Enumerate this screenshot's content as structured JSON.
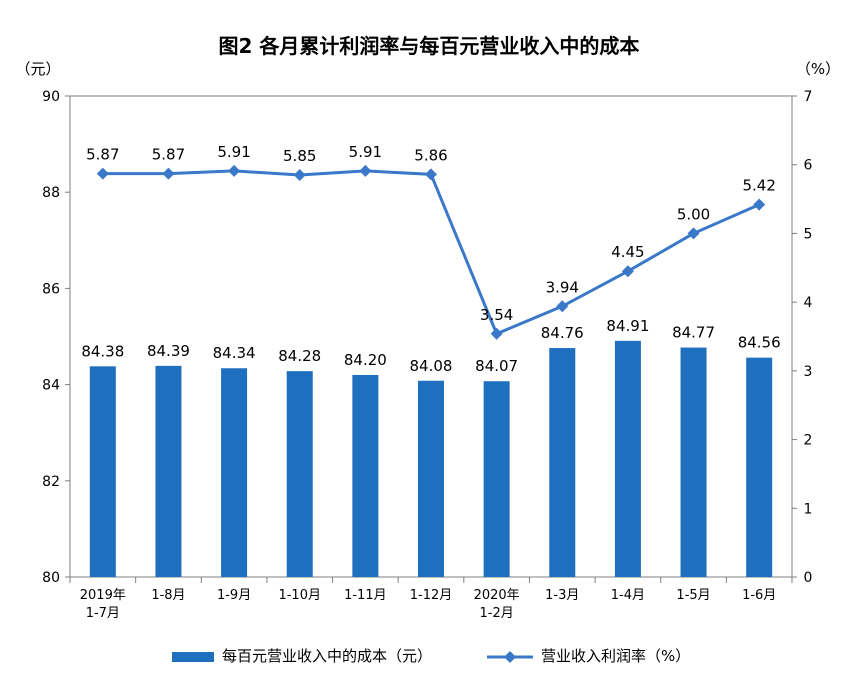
{
  "chart_data": {
    "type": "bar+line",
    "title": "图2 各月累计利润率与每百元营业收入中的成本",
    "left_axis_unit": "（元）",
    "right_axis_unit": "（%）",
    "categories": [
      [
        "2019年",
        "1-7月"
      ],
      [
        "1-8月"
      ],
      [
        "1-9月"
      ],
      [
        "1-10月"
      ],
      [
        "1-11月"
      ],
      [
        "1-12月"
      ],
      [
        "2020年",
        "1-2月"
      ],
      [
        "1-3月"
      ],
      [
        "1-4月"
      ],
      [
        "1-5月"
      ],
      [
        "1-6月"
      ]
    ],
    "series": [
      {
        "name": "每百元营业收入中的成本（元）",
        "type": "bar",
        "axis": "left",
        "color": "#1f6fbf",
        "values": [
          84.38,
          84.39,
          84.34,
          84.28,
          84.2,
          84.08,
          84.07,
          84.76,
          84.91,
          84.77,
          84.56
        ]
      },
      {
        "name": "营业收入利润率（%）",
        "type": "line",
        "axis": "right",
        "color": "#3a78c9",
        "values": [
          5.87,
          5.87,
          5.91,
          5.85,
          5.91,
          5.86,
          3.54,
          3.94,
          4.45,
          5.0,
          5.42
        ]
      }
    ],
    "left_ylim": [
      80,
      90
    ],
    "left_ticks": [
      80,
      82,
      84,
      86,
      88,
      90
    ],
    "right_ylim": [
      0,
      7
    ],
    "right_ticks": [
      0,
      1,
      2,
      3,
      4,
      5,
      6,
      7
    ],
    "grid": false,
    "legend_position": "bottom"
  }
}
